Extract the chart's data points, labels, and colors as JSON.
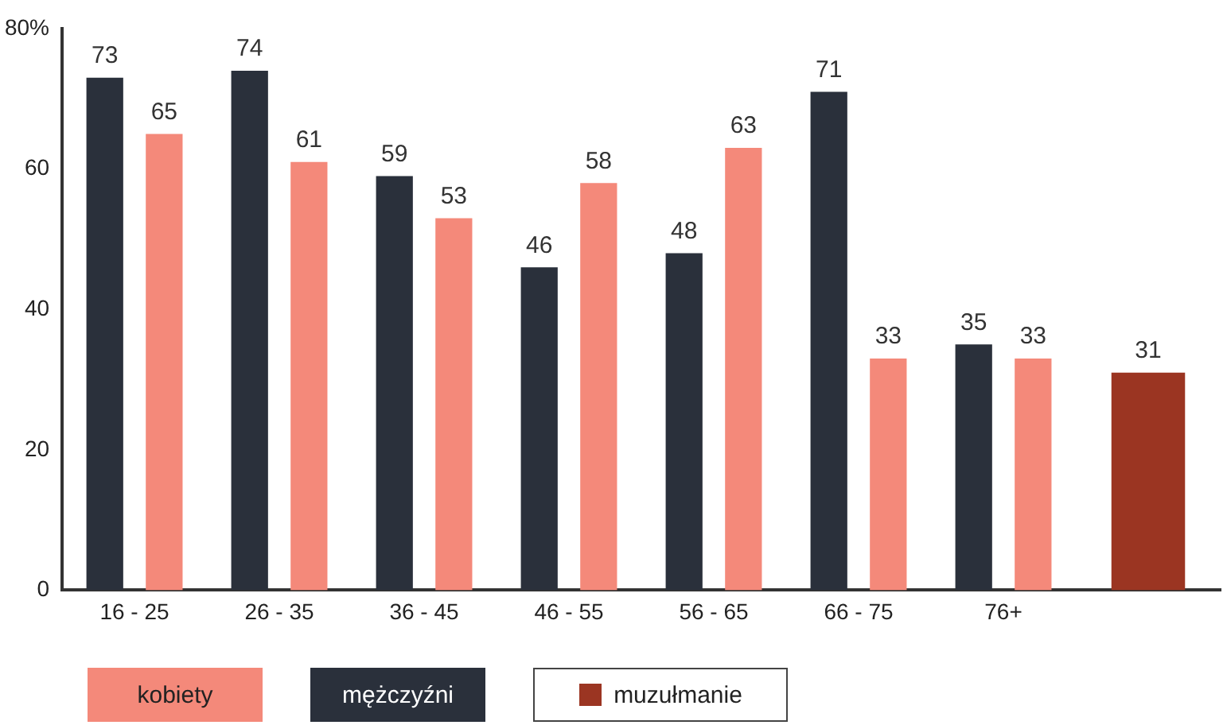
{
  "chart_data": {
    "type": "bar",
    "categories": [
      "16 - 25",
      "26 - 35",
      "36 - 45",
      "46 - 55",
      "56 - 65",
      "66 - 75",
      "76+",
      null
    ],
    "series": [
      {
        "name": "kobiety",
        "color": "#f4897a",
        "values": [
          65,
          61,
          53,
          58,
          63,
          33,
          33,
          null
        ]
      },
      {
        "name": "mężczyźni",
        "color": "#2a303b",
        "values": [
          73,
          74,
          59,
          46,
          48,
          71,
          35,
          null
        ]
      },
      {
        "name": "muzułmanie",
        "color": "#9b3522",
        "values": [
          null,
          null,
          null,
          null,
          null,
          null,
          null,
          31
        ]
      }
    ],
    "ylim": [
      0,
      80
    ],
    "yticks": [
      0,
      20,
      40,
      60,
      {
        "value": 80,
        "label": "80%"
      }
    ],
    "grid": false,
    "legend": "bottom left",
    "data_labels": true
  }
}
